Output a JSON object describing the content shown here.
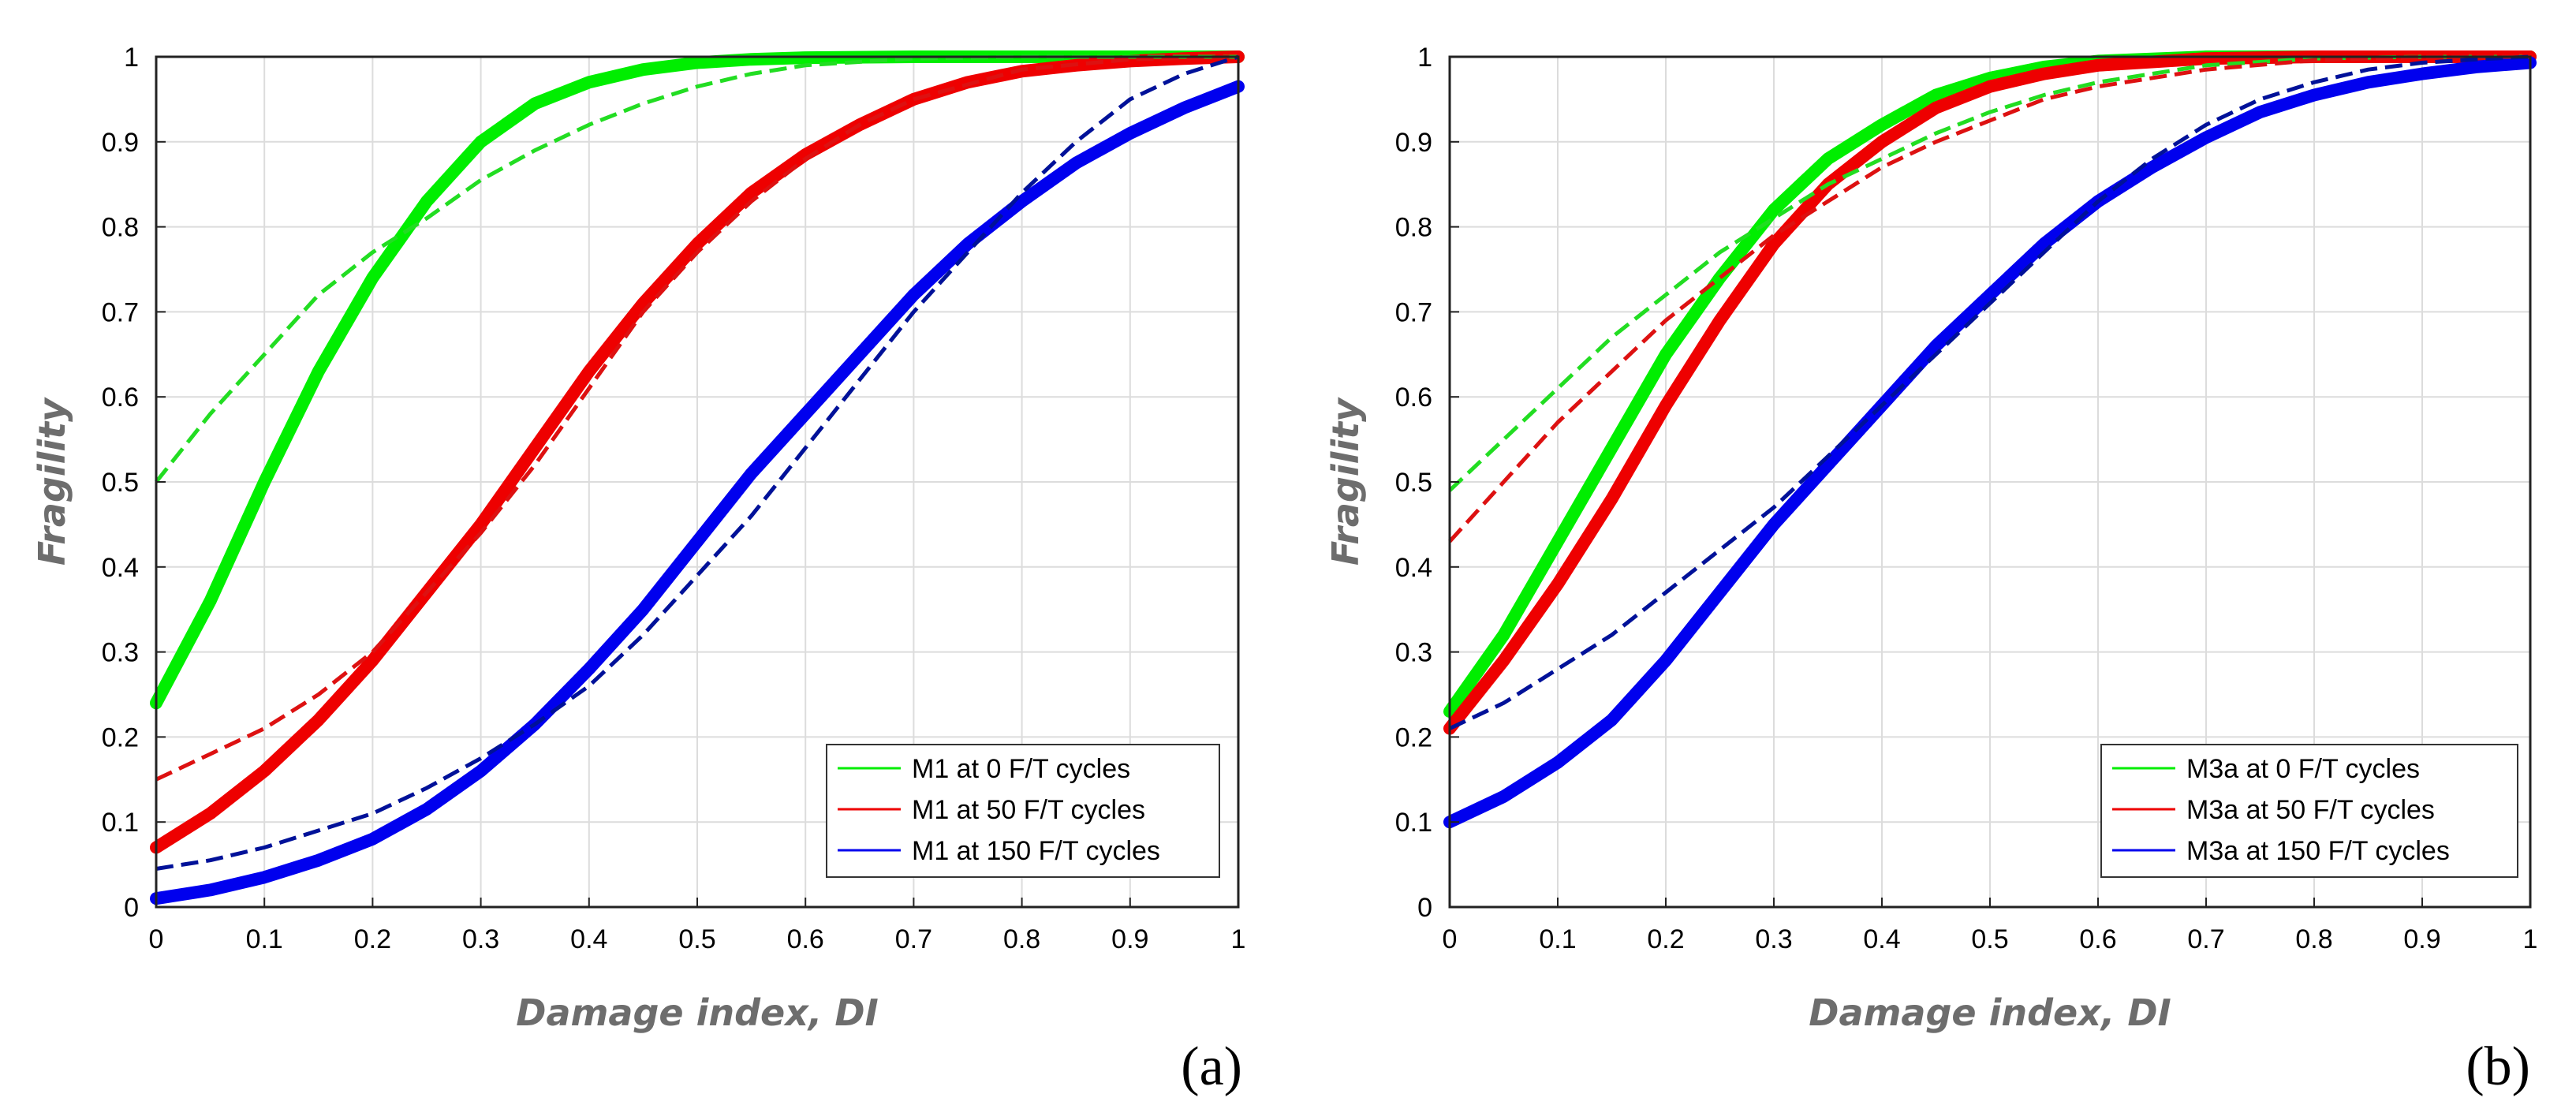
{
  "chart_data": [
    {
      "type": "line",
      "panel_label": "(a)",
      "xlabel": "Damage index, DI",
      "ylabel": "Fragility",
      "xlim": [
        0,
        1
      ],
      "ylim": [
        0,
        1
      ],
      "xticks": [
        "0",
        "0.1",
        "0.2",
        "0.3",
        "0.4",
        "0.5",
        "0.6",
        "0.7",
        "0.8",
        "0.9",
        "1"
      ],
      "yticks": [
        "0",
        "0.1",
        "0.2",
        "0.3",
        "0.4",
        "0.5",
        "0.6",
        "0.7",
        "0.8",
        "0.9",
        "1"
      ],
      "grid": true,
      "legend_position": "bottom-right",
      "series": [
        {
          "name": "M1 at 0 F/T cycles",
          "color": "#00ee00",
          "style": "thick",
          "x": [
            0,
            0.05,
            0.1,
            0.15,
            0.2,
            0.25,
            0.3,
            0.35,
            0.4,
            0.45,
            0.5,
            0.55,
            0.6,
            0.7,
            0.8,
            0.9,
            1.0
          ],
          "y": [
            0.24,
            0.36,
            0.5,
            0.63,
            0.74,
            0.83,
            0.9,
            0.945,
            0.97,
            0.985,
            0.993,
            0.997,
            0.999,
            1.0,
            1.0,
            1.0,
            1.0
          ]
        },
        {
          "name": "M1 at 0 F/T cycles (fitted)",
          "color": "#22dd22",
          "style": "dashed",
          "x": [
            0,
            0.05,
            0.1,
            0.15,
            0.2,
            0.25,
            0.3,
            0.35,
            0.4,
            0.45,
            0.5,
            0.55,
            0.6,
            0.7,
            0.8,
            0.9,
            1.0
          ],
          "y": [
            0.5,
            0.58,
            0.65,
            0.72,
            0.77,
            0.81,
            0.855,
            0.89,
            0.92,
            0.945,
            0.965,
            0.98,
            0.99,
            0.998,
            1.0,
            1.0,
            1.0
          ]
        },
        {
          "name": "M1 at 50 F/T cycles",
          "color": "#ee0000",
          "style": "thick",
          "x": [
            0,
            0.05,
            0.1,
            0.15,
            0.2,
            0.25,
            0.3,
            0.35,
            0.4,
            0.45,
            0.5,
            0.55,
            0.6,
            0.65,
            0.7,
            0.75,
            0.8,
            0.85,
            0.9,
            0.95,
            1.0
          ],
          "y": [
            0.07,
            0.11,
            0.16,
            0.22,
            0.29,
            0.37,
            0.45,
            0.54,
            0.63,
            0.71,
            0.78,
            0.84,
            0.885,
            0.92,
            0.95,
            0.97,
            0.983,
            0.99,
            0.995,
            0.998,
            1.0
          ]
        },
        {
          "name": "M1 at 50 F/T cycles (fitted)",
          "color": "#dd1111",
          "style": "dashed",
          "x": [
            0,
            0.05,
            0.1,
            0.15,
            0.2,
            0.25,
            0.3,
            0.35,
            0.4,
            0.45,
            0.5,
            0.55,
            0.6,
            0.65,
            0.7,
            0.8,
            0.9,
            1.0
          ],
          "y": [
            0.15,
            0.18,
            0.21,
            0.25,
            0.3,
            0.37,
            0.44,
            0.52,
            0.61,
            0.7,
            0.77,
            0.83,
            0.88,
            0.92,
            0.95,
            0.985,
            0.997,
            1.0
          ]
        },
        {
          "name": "M1 at 150 F/T cycles",
          "color": "#0000ee",
          "style": "thick",
          "x": [
            0,
            0.05,
            0.1,
            0.15,
            0.2,
            0.25,
            0.3,
            0.35,
            0.4,
            0.45,
            0.5,
            0.55,
            0.6,
            0.65,
            0.7,
            0.75,
            0.8,
            0.85,
            0.9,
            0.95,
            1.0
          ],
          "y": [
            0.01,
            0.02,
            0.035,
            0.055,
            0.08,
            0.115,
            0.16,
            0.215,
            0.28,
            0.35,
            0.43,
            0.51,
            0.58,
            0.65,
            0.72,
            0.78,
            0.83,
            0.875,
            0.91,
            0.94,
            0.965
          ]
        },
        {
          "name": "M1 at 150 F/T cycles (fitted)",
          "color": "#001199",
          "style": "dashed",
          "x": [
            0,
            0.05,
            0.1,
            0.15,
            0.2,
            0.25,
            0.3,
            0.35,
            0.4,
            0.45,
            0.5,
            0.55,
            0.6,
            0.65,
            0.7,
            0.75,
            0.8,
            0.85,
            0.9,
            0.95,
            1.0
          ],
          "y": [
            0.045,
            0.055,
            0.07,
            0.09,
            0.11,
            0.14,
            0.175,
            0.215,
            0.26,
            0.32,
            0.39,
            0.46,
            0.54,
            0.62,
            0.7,
            0.77,
            0.84,
            0.9,
            0.95,
            0.98,
            1.0
          ]
        }
      ],
      "legend": [
        "M1 at 0 F/T cycles",
        "M1 at 50 F/T cycles",
        "M1 at 150 F/T cycles"
      ],
      "legend_colors": [
        "#00ee00",
        "#ee0000",
        "#0000ee"
      ]
    },
    {
      "type": "line",
      "panel_label": "(b)",
      "xlabel": "Damage index, DI",
      "ylabel": "Fragility",
      "xlim": [
        0,
        1
      ],
      "ylim": [
        0,
        1
      ],
      "xticks": [
        "0",
        "0.1",
        "0.2",
        "0.3",
        "0.4",
        "0.5",
        "0.6",
        "0.7",
        "0.8",
        "0.9",
        "1"
      ],
      "yticks": [
        "0",
        "0.1",
        "0.2",
        "0.3",
        "0.4",
        "0.5",
        "0.6",
        "0.7",
        "0.8",
        "0.9",
        "1"
      ],
      "grid": true,
      "legend_position": "bottom-right",
      "series": [
        {
          "name": "M3a at 0 F/T cycles",
          "color": "#00ee00",
          "style": "thick",
          "x": [
            0,
            0.05,
            0.1,
            0.15,
            0.2,
            0.25,
            0.3,
            0.35,
            0.4,
            0.45,
            0.5,
            0.55,
            0.6,
            0.7,
            0.8,
            0.9,
            1.0
          ],
          "y": [
            0.23,
            0.32,
            0.43,
            0.54,
            0.65,
            0.74,
            0.82,
            0.88,
            0.92,
            0.955,
            0.975,
            0.988,
            0.995,
            1.0,
            1.0,
            1.0,
            1.0
          ]
        },
        {
          "name": "M3a at 0 F/T cycles (fitted)",
          "color": "#22dd22",
          "style": "dashed",
          "x": [
            0,
            0.05,
            0.1,
            0.15,
            0.2,
            0.25,
            0.3,
            0.35,
            0.4,
            0.45,
            0.5,
            0.55,
            0.6,
            0.7,
            0.8,
            0.9,
            1.0
          ],
          "y": [
            0.49,
            0.55,
            0.61,
            0.67,
            0.72,
            0.77,
            0.81,
            0.85,
            0.88,
            0.91,
            0.935,
            0.955,
            0.97,
            0.99,
            0.998,
            1.0,
            1.0
          ]
        },
        {
          "name": "M3a at 50 F/T cycles",
          "color": "#ee0000",
          "style": "thick",
          "x": [
            0,
            0.05,
            0.1,
            0.15,
            0.2,
            0.25,
            0.3,
            0.35,
            0.4,
            0.45,
            0.5,
            0.55,
            0.6,
            0.7,
            0.8,
            0.9,
            1.0
          ],
          "y": [
            0.21,
            0.29,
            0.38,
            0.48,
            0.59,
            0.69,
            0.78,
            0.85,
            0.9,
            0.94,
            0.965,
            0.98,
            0.99,
            0.998,
            1.0,
            1.0,
            1.0
          ]
        },
        {
          "name": "M3a at 50 F/T cycles (fitted)",
          "color": "#dd1111",
          "style": "dashed",
          "x": [
            0,
            0.05,
            0.1,
            0.15,
            0.2,
            0.25,
            0.3,
            0.35,
            0.4,
            0.45,
            0.5,
            0.55,
            0.6,
            0.7,
            0.8,
            0.9,
            1.0
          ],
          "y": [
            0.43,
            0.5,
            0.57,
            0.63,
            0.69,
            0.74,
            0.79,
            0.83,
            0.87,
            0.9,
            0.925,
            0.95,
            0.965,
            0.985,
            0.996,
            1.0,
            1.0
          ]
        },
        {
          "name": "M3a at 150 F/T cycles",
          "color": "#0000ee",
          "style": "thick",
          "x": [
            0,
            0.05,
            0.1,
            0.15,
            0.2,
            0.25,
            0.3,
            0.35,
            0.4,
            0.45,
            0.5,
            0.55,
            0.6,
            0.65,
            0.7,
            0.75,
            0.8,
            0.85,
            0.9,
            0.95,
            1.0
          ],
          "y": [
            0.1,
            0.13,
            0.17,
            0.22,
            0.29,
            0.37,
            0.45,
            0.52,
            0.59,
            0.66,
            0.72,
            0.78,
            0.83,
            0.87,
            0.905,
            0.935,
            0.955,
            0.97,
            0.98,
            0.988,
            0.993
          ]
        },
        {
          "name": "M3a at 150 F/T cycles (fitted)",
          "color": "#001199",
          "style": "dashed",
          "x": [
            0,
            0.05,
            0.1,
            0.15,
            0.2,
            0.25,
            0.3,
            0.35,
            0.4,
            0.45,
            0.5,
            0.55,
            0.6,
            0.65,
            0.7,
            0.75,
            0.8,
            0.85,
            0.9,
            0.95,
            1.0
          ],
          "y": [
            0.21,
            0.24,
            0.28,
            0.32,
            0.37,
            0.42,
            0.47,
            0.53,
            0.59,
            0.65,
            0.71,
            0.77,
            0.83,
            0.88,
            0.92,
            0.95,
            0.97,
            0.985,
            0.993,
            0.997,
            1.0
          ]
        }
      ],
      "legend": [
        "M3a at 0 F/T cycles",
        "M3a at 50 F/T cycles",
        "M3a at 150 F/T cycles"
      ],
      "legend_colors": [
        "#00ee00",
        "#ee0000",
        "#0000ee"
      ]
    }
  ]
}
